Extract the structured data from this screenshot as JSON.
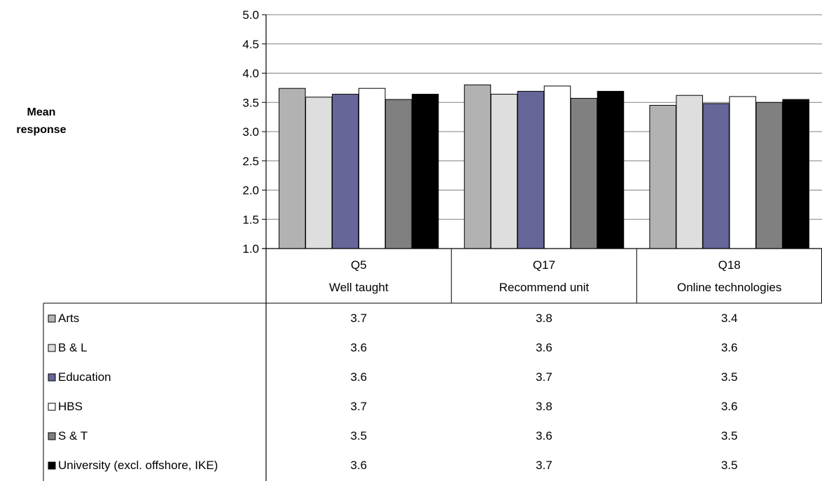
{
  "chart_data": {
    "type": "bar",
    "ylabel": "Mean\nresponse",
    "ylim": [
      1.0,
      5.0
    ],
    "yticks": [
      "1.0",
      "1.5",
      "2.0",
      "2.5",
      "3.0",
      "3.5",
      "4.0",
      "4.5",
      "5.0"
    ],
    "categories": [
      {
        "code": "Q5",
        "label": "Well taught"
      },
      {
        "code": "Q17",
        "label": "Recommend unit"
      },
      {
        "code": "Q18",
        "label": "Online technologies"
      }
    ],
    "series": [
      {
        "name": "Arts",
        "color": "#b2b2b2",
        "values": [
          3.74,
          3.8,
          3.45
        ],
        "labels": [
          "3.7",
          "3.8",
          "3.4"
        ]
      },
      {
        "name": "B & L",
        "color": "#dedede",
        "values": [
          3.59,
          3.64,
          3.62
        ],
        "labels": [
          "3.6",
          "3.6",
          "3.6"
        ]
      },
      {
        "name": "Education",
        "color": "#666699",
        "values": [
          3.64,
          3.69,
          3.48
        ],
        "labels": [
          "3.6",
          "3.7",
          "3.5"
        ]
      },
      {
        "name": "HBS",
        "color": "#ffffff",
        "values": [
          3.74,
          3.78,
          3.6
        ],
        "labels": [
          "3.7",
          "3.8",
          "3.6"
        ]
      },
      {
        "name": "S & T",
        "color": "#808080",
        "values": [
          3.55,
          3.57,
          3.5
        ],
        "labels": [
          "3.5",
          "3.6",
          "3.5"
        ]
      },
      {
        "name": "University (excl. offshore, IKE)",
        "color": "#000000",
        "values": [
          3.64,
          3.69,
          3.55
        ],
        "labels": [
          "3.6",
          "3.7",
          "3.5"
        ]
      }
    ],
    "gridlines": true,
    "legend": "data table"
  }
}
